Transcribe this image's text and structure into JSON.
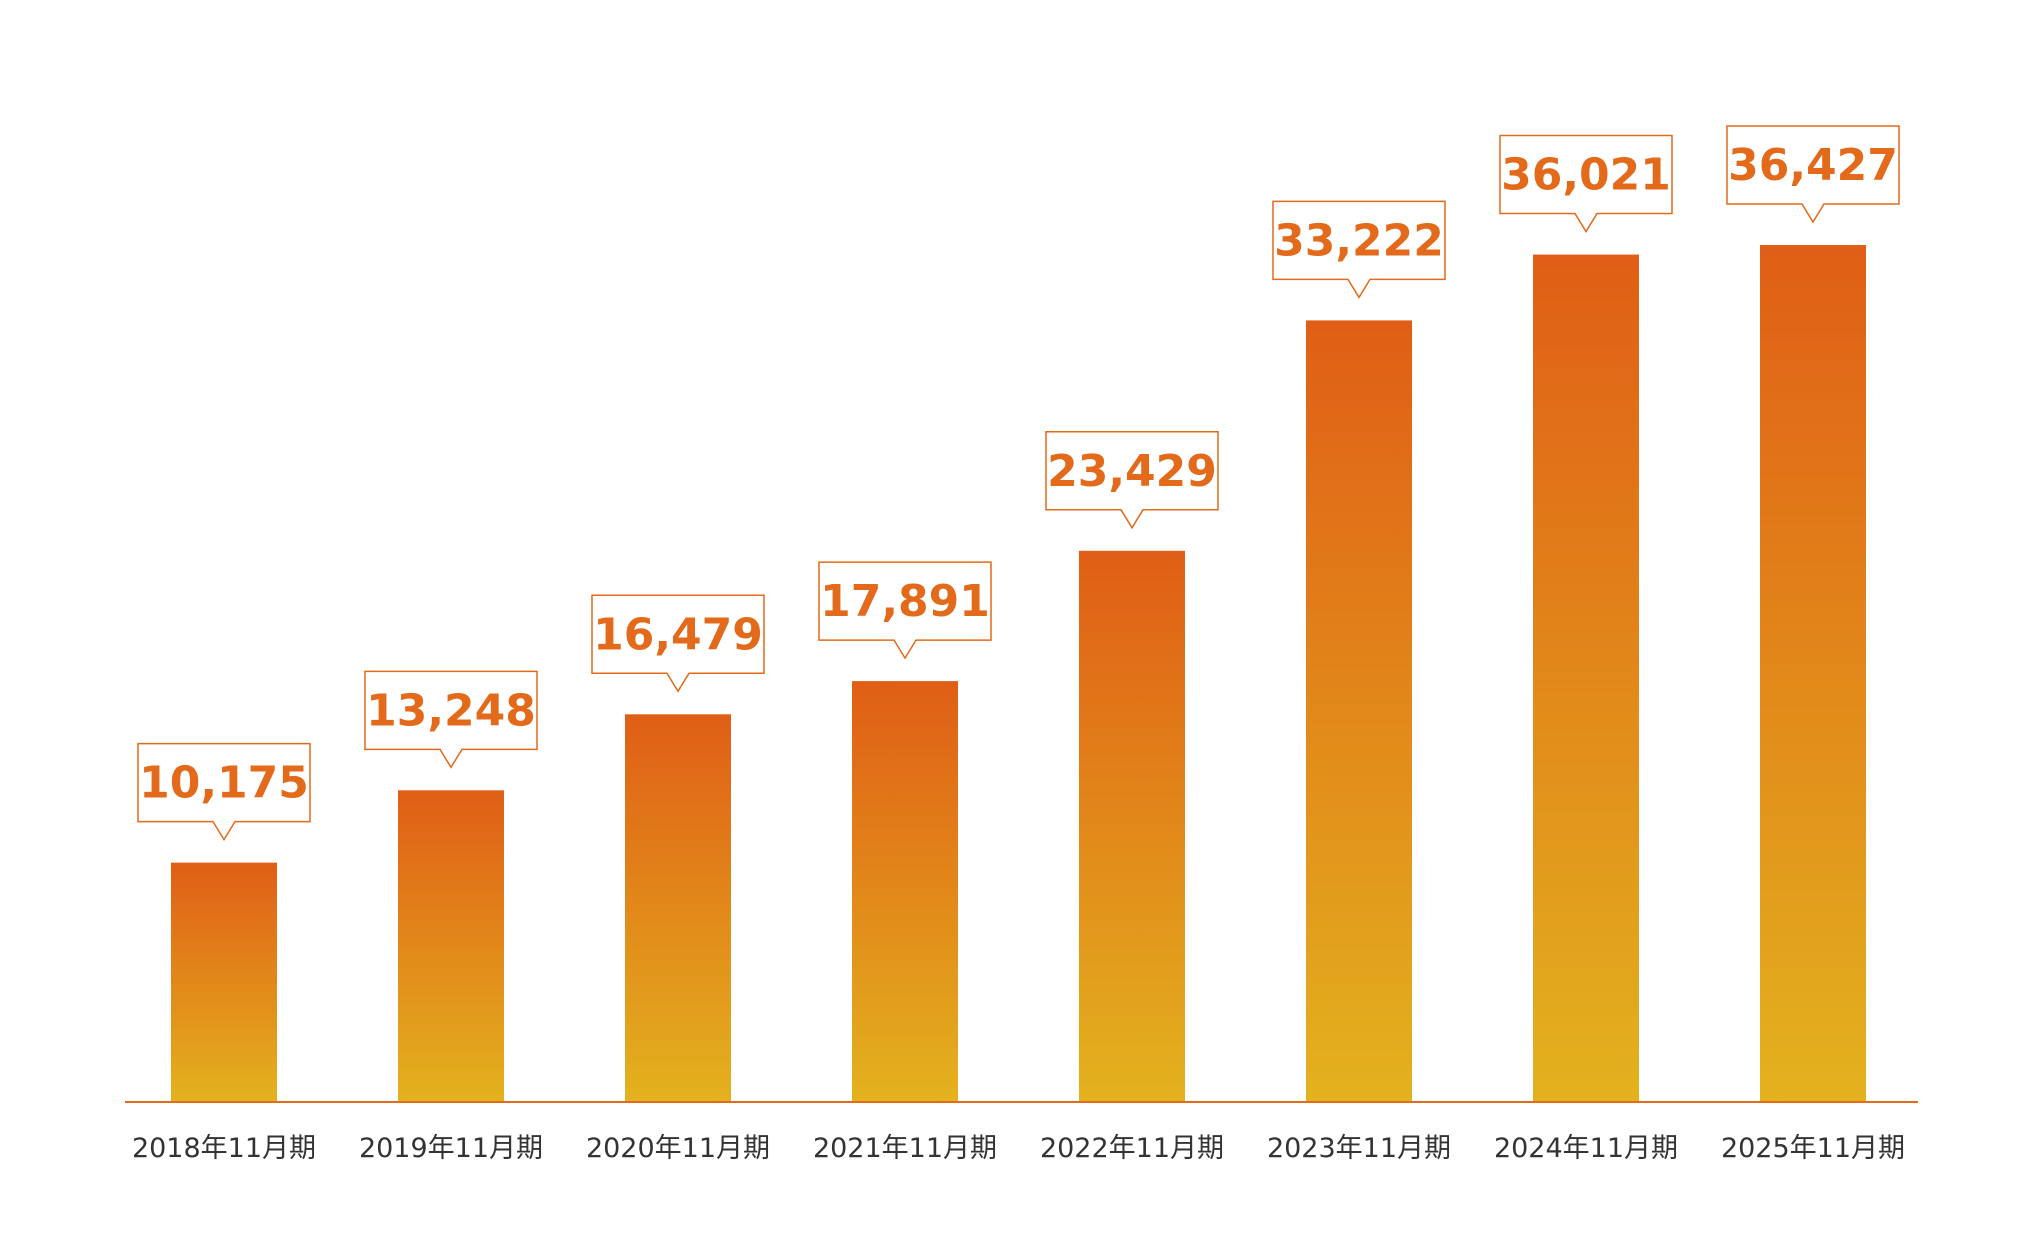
{
  "chart_data": {
    "type": "bar",
    "title": "",
    "xlabel": "",
    "ylabel": "",
    "ylim": [
      0,
      36427
    ],
    "grid": false,
    "categories": [
      "2018年11月期",
      "2019年11月期",
      "2020年11月期",
      "2021年11月期",
      "2022年11月期",
      "2023年11月期",
      "2024年11月期",
      "2025年11月期"
    ],
    "values": [
      10175,
      13248,
      16479,
      17891,
      23429,
      33222,
      36021,
      36427
    ],
    "data_labels": [
      "10,175",
      "13,248",
      "16,479",
      "17,891",
      "23,429",
      "33,222",
      "36,021",
      "36,427"
    ],
    "colors": {
      "bar_top": "#e05e16",
      "bar_bottom": "#e3b21e",
      "axis": "#e36a1a",
      "label": "#e36a1a",
      "tick_text": "#333333"
    }
  }
}
